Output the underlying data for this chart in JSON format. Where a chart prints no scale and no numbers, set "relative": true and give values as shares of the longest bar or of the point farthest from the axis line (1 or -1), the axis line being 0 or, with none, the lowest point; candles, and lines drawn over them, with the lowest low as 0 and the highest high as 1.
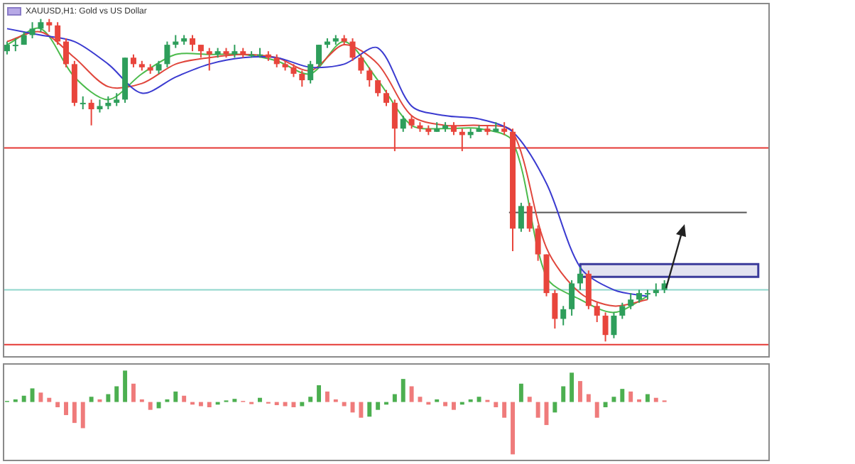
{
  "chart_data": [
    {
      "type": "candlestick",
      "title": "XAUUSD,H1: Gold vs US Dollar",
      "relative": true,
      "tick_labels": false,
      "categories": [
        null,
        null,
        null,
        null,
        null,
        null,
        null,
        null,
        null,
        null,
        null,
        null,
        null,
        null,
        null,
        null,
        null,
        null,
        null,
        null,
        null,
        null,
        null,
        null,
        null,
        null,
        null,
        null,
        null,
        null,
        null,
        null,
        null,
        null,
        null,
        null,
        null,
        null,
        null,
        null,
        null,
        null,
        null,
        null,
        null,
        null,
        null,
        null,
        null,
        null,
        null,
        null,
        null,
        null,
        null,
        null,
        null,
        null,
        null,
        null,
        null,
        null,
        null,
        null,
        null,
        null,
        null,
        null,
        null,
        null,
        null,
        null,
        null,
        null,
        null,
        null,
        null,
        null,
        null,
        null,
        null,
        null,
        null,
        null,
        null,
        null,
        null,
        null,
        null,
        null,
        null
      ],
      "ohlc": [
        [
          0.9,
          0.93,
          0.89,
          0.92
        ],
        [
          0.92,
          0.94,
          0.9,
          0.92
        ],
        [
          0.92,
          0.96,
          0.92,
          0.95
        ],
        [
          0.95,
          0.99,
          0.94,
          0.97
        ],
        [
          0.97,
          1,
          0.96,
          0.99
        ],
        [
          0.99,
          1,
          0.96,
          0.98
        ],
        [
          0.98,
          0.99,
          0.92,
          0.93
        ],
        [
          0.93,
          0.94,
          0.85,
          0.86
        ],
        [
          0.86,
          0.87,
          0.73,
          0.74
        ],
        [
          0.74,
          0.76,
          0.72,
          0.74
        ],
        [
          0.74,
          0.75,
          0.67,
          0.72
        ],
        [
          0.72,
          0.75,
          0.71,
          0.73
        ],
        [
          0.73,
          0.76,
          0.72,
          0.74
        ],
        [
          0.74,
          0.77,
          0.73,
          0.75
        ],
        [
          0.75,
          0.88,
          0.74,
          0.88
        ],
        [
          0.88,
          0.89,
          0.85,
          0.86
        ],
        [
          0.86,
          0.87,
          0.84,
          0.85
        ],
        [
          0.85,
          0.86,
          0.83,
          0.84
        ],
        [
          0.84,
          0.87,
          0.83,
          0.86
        ],
        [
          0.86,
          0.93,
          0.85,
          0.92
        ],
        [
          0.92,
          0.95,
          0.91,
          0.93
        ],
        [
          0.93,
          0.95,
          0.92,
          0.94
        ],
        [
          0.94,
          0.95,
          0.9,
          0.92
        ],
        [
          0.92,
          0.92,
          0.88,
          0.9
        ],
        [
          0.9,
          0.91,
          0.84,
          0.89
        ],
        [
          0.89,
          0.91,
          0.88,
          0.9
        ],
        [
          0.9,
          0.91,
          0.88,
          0.89
        ],
        [
          0.89,
          0.92,
          0.88,
          0.9
        ],
        [
          0.9,
          0.91,
          0.88,
          0.89
        ],
        [
          0.89,
          0.9,
          0.88,
          0.89
        ],
        [
          0.89,
          0.91,
          0.88,
          0.89
        ],
        [
          0.89,
          0.9,
          0.87,
          0.88
        ],
        [
          0.88,
          0.89,
          0.85,
          0.86
        ],
        [
          0.86,
          0.87,
          0.84,
          0.85
        ],
        [
          0.85,
          0.86,
          0.82,
          0.83
        ],
        [
          0.83,
          0.84,
          0.79,
          0.81
        ],
        [
          0.81,
          0.87,
          0.8,
          0.86
        ],
        [
          0.86,
          0.92,
          0.85,
          0.92
        ],
        [
          0.92,
          0.94,
          0.91,
          0.93
        ],
        [
          0.93,
          0.95,
          0.92,
          0.94
        ],
        [
          0.94,
          0.95,
          0.92,
          0.93
        ],
        [
          0.93,
          0.94,
          0.87,
          0.88
        ],
        [
          0.88,
          0.89,
          0.83,
          0.84
        ],
        [
          0.84,
          0.85,
          0.79,
          0.81
        ],
        [
          0.81,
          0.81,
          0.76,
          0.77
        ],
        [
          0.77,
          0.78,
          0.73,
          0.74
        ],
        [
          0.74,
          0.75,
          0.59,
          0.66
        ],
        [
          0.66,
          0.7,
          0.65,
          0.69
        ],
        [
          0.69,
          0.7,
          0.66,
          0.67
        ],
        [
          0.67,
          0.68,
          0.65,
          0.66
        ],
        [
          0.66,
          0.67,
          0.64,
          0.65
        ],
        [
          0.65,
          0.68,
          0.65,
          0.66
        ],
        [
          0.66,
          0.68,
          0.65,
          0.67
        ],
        [
          0.67,
          0.68,
          0.64,
          0.65
        ],
        [
          0.65,
          0.66,
          0.59,
          0.64
        ],
        [
          0.64,
          0.66,
          0.63,
          0.65
        ],
        [
          0.65,
          0.67,
          0.65,
          0.66
        ],
        [
          0.66,
          0.67,
          0.64,
          0.65
        ],
        [
          0.65,
          0.68,
          0.65,
          0.66
        ],
        [
          0.66,
          0.68,
          0.64,
          0.65
        ],
        [
          0.65,
          0.66,
          0.28,
          0.35
        ],
        [
          0.35,
          0.43,
          0.34,
          0.42
        ],
        [
          0.42,
          0.43,
          0.34,
          0.35
        ],
        [
          0.35,
          0.36,
          0.25,
          0.27
        ],
        [
          0.27,
          0.27,
          0.14,
          0.15
        ],
        [
          0.15,
          0.16,
          0.04,
          0.07
        ],
        [
          0.07,
          0.11,
          0.05,
          0.1
        ],
        [
          0.1,
          0.19,
          0.08,
          0.18
        ],
        [
          0.18,
          0.23,
          0.16,
          0.21
        ],
        [
          0.21,
          0.22,
          0.1,
          0.11
        ],
        [
          0.11,
          0.12,
          0.06,
          0.08
        ],
        [
          0.08,
          0.09,
          0,
          0.02
        ],
        [
          0.02,
          0.09,
          0.01,
          0.08
        ],
        [
          0.08,
          0.12,
          0.07,
          0.11
        ],
        [
          0.11,
          0.15,
          0.1,
          0.13
        ],
        [
          0.13,
          0.16,
          0.12,
          0.15
        ],
        [
          0.15,
          0.16,
          0.13,
          0.15
        ],
        [
          0.15,
          0.18,
          0.14,
          0.16
        ],
        [
          0.16,
          0.19,
          0.15,
          0.18
        ],
        null,
        null,
        null,
        null,
        null,
        null,
        null,
        null,
        null,
        null,
        null,
        null
      ],
      "series": [
        {
          "type": "line",
          "color": "#3b3bd0",
          "values": [
            0.97,
            null,
            null,
            null,
            0.95,
            null,
            null,
            null,
            0.93,
            null,
            null,
            null,
            0.86,
            null,
            null,
            null,
            0.77,
            null,
            null,
            null,
            0.82,
            null,
            null,
            null,
            0.86,
            null,
            null,
            null,
            0.88,
            null,
            null,
            null,
            0.88,
            null,
            null,
            null,
            0.85,
            null,
            null,
            null,
            0.86,
            null,
            null,
            null,
            0.91,
            null,
            null,
            null,
            0.73,
            null,
            null,
            null,
            0.7,
            null,
            null,
            null,
            0.69,
            null,
            null,
            null,
            0.65,
            null,
            null,
            null,
            0.49,
            null,
            null,
            null,
            0.23,
            null,
            null,
            null,
            0.16,
            null,
            null,
            null,
            0.14,
            null,
            null,
            null,
            null,
            null,
            null,
            null,
            null,
            null,
            null,
            null,
            null,
            null,
            null
          ]
        },
        {
          "type": "line",
          "color": "#e0463c",
          "values": [
            0.93,
            null,
            null,
            null,
            0.96,
            null,
            null,
            null,
            0.88,
            null,
            null,
            null,
            0.79,
            null,
            null,
            null,
            0.8,
            null,
            null,
            null,
            0.86,
            null,
            null,
            null,
            0.88,
            null,
            null,
            null,
            0.89,
            null,
            null,
            null,
            0.88,
            null,
            null,
            null,
            0.84,
            null,
            null,
            null,
            0.92,
            null,
            null,
            null,
            0.86,
            null,
            null,
            null,
            0.7,
            null,
            null,
            null,
            0.67,
            null,
            null,
            null,
            0.67,
            null,
            null,
            null,
            0.65,
            null,
            null,
            null,
            0.29,
            null,
            null,
            null,
            0.15,
            null,
            null,
            null,
            0.11,
            null,
            null,
            null,
            0.13,
            null,
            null,
            null,
            null,
            null,
            null,
            null,
            null,
            null,
            null,
            null,
            null,
            null,
            null
          ]
        },
        {
          "type": "line",
          "color": "#4cbb4c",
          "values": [
            0.92,
            null,
            null,
            null,
            0.97,
            null,
            null,
            null,
            0.82,
            null,
            null,
            null,
            0.75,
            null,
            null,
            null,
            0.83,
            null,
            null,
            null,
            0.89,
            null,
            null,
            null,
            0.89,
            null,
            null,
            null,
            0.89,
            null,
            null,
            null,
            0.87,
            null,
            null,
            null,
            0.83,
            null,
            null,
            null,
            0.93,
            null,
            null,
            null,
            0.81,
            null,
            null,
            null,
            0.67,
            null,
            null,
            null,
            0.66,
            null,
            null,
            null,
            0.66,
            null,
            null,
            null,
            0.62,
            null,
            null,
            null,
            0.2,
            null,
            null,
            null,
            0.13,
            null,
            null,
            null,
            0.09,
            null,
            null,
            null,
            0.14,
            null,
            null,
            null,
            null,
            null,
            null,
            null,
            null,
            null,
            null,
            null,
            null,
            null,
            null
          ]
        }
      ],
      "ref_lines": [
        {
          "axis": "y",
          "value": 0.6,
          "color": "#e53935"
        },
        {
          "axis": "y",
          "value": -0.01,
          "color": "#e53935"
        },
        {
          "axis": "y",
          "value": 0.16,
          "color": "#8fd6cc"
        },
        {
          "axis": "y",
          "value": 0.4,
          "color": "#555555"
        }
      ],
      "bands": [
        {
          "axis": "y",
          "from": 0.2,
          "to": 0.24,
          "color": "#3a3a9a"
        }
      ]
    },
    {
      "type": "bar",
      "relative": true,
      "tick_labels": false,
      "categories": [
        null,
        null,
        null,
        null,
        null,
        null,
        null,
        null,
        null,
        null,
        null,
        null,
        null,
        null,
        null,
        null,
        null,
        null,
        null,
        null,
        null,
        null,
        null,
        null,
        null,
        null,
        null,
        null,
        null,
        null,
        null,
        null,
        null,
        null,
        null,
        null,
        null,
        null,
        null,
        null,
        null,
        null,
        null,
        null,
        null,
        null,
        null,
        null,
        null,
        null,
        null,
        null,
        null,
        null,
        null,
        null,
        null,
        null,
        null,
        null,
        null,
        null,
        null,
        null,
        null,
        null,
        null,
        null,
        null,
        null,
        null,
        null,
        null,
        null,
        null,
        null,
        null,
        null,
        null,
        null,
        null,
        null,
        null,
        null,
        null,
        null,
        null,
        null,
        null,
        null,
        null
      ],
      "values": [
        0.02,
        0.05,
        0.12,
        0.26,
        0.18,
        0.08,
        -0.1,
        -0.25,
        -0.4,
        -0.5,
        0.1,
        0.05,
        0.15,
        0.3,
        0.6,
        0.35,
        0.05,
        -0.15,
        -0.12,
        0.05,
        0.2,
        0.12,
        -0.05,
        -0.08,
        -0.1,
        -0.05,
        0.03,
        0.06,
        0.02,
        -0.04,
        0.08,
        -0.03,
        -0.06,
        -0.08,
        -0.1,
        -0.08,
        0.1,
        0.32,
        0.2,
        0.05,
        -0.08,
        -0.2,
        -0.3,
        -0.28,
        -0.15,
        -0.05,
        0.15,
        0.44,
        0.3,
        0.1,
        -0.05,
        0.05,
        -0.08,
        -0.15,
        -0.05,
        0.05,
        0.1,
        0.04,
        -0.1,
        -0.3,
        -1,
        0.35,
        0.1,
        -0.3,
        -0.44,
        -0.2,
        0.3,
        0.56,
        0.4,
        0.15,
        -0.3,
        -0.1,
        0.1,
        0.25,
        0.2,
        0.05,
        0.15,
        0.08,
        0.03,
        null,
        null,
        null,
        null,
        null,
        null,
        null,
        null,
        null,
        null,
        null,
        null
      ],
      "colors": [
        "#4caf50",
        "#4caf50",
        "#4caf50",
        "#4caf50",
        "#ef7b7b",
        "#ef7b7b",
        "#ef7b7b",
        "#ef7b7b",
        "#ef7b7b",
        "#ef7b7b",
        "#4caf50",
        "#ef7b7b",
        "#4caf50",
        "#4caf50",
        "#4caf50",
        "#ef7b7b",
        "#ef7b7b",
        "#ef7b7b",
        "#4caf50",
        "#4caf50",
        "#4caf50",
        "#ef7b7b",
        "#ef7b7b",
        "#ef7b7b",
        "#ef7b7b",
        "#4caf50",
        "#4caf50",
        "#4caf50",
        "#ef7b7b",
        "#ef7b7b",
        "#4caf50",
        "#ef7b7b",
        "#ef7b7b",
        "#ef7b7b",
        "#ef7b7b",
        "#4caf50",
        "#4caf50",
        "#4caf50",
        "#ef7b7b",
        "#ef7b7b",
        "#ef7b7b",
        "#ef7b7b",
        "#ef7b7b",
        "#4caf50",
        "#4caf50",
        "#4caf50",
        "#4caf50",
        "#4caf50",
        "#ef7b7b",
        "#ef7b7b",
        "#ef7b7b",
        "#4caf50",
        "#ef7b7b",
        "#ef7b7b",
        "#4caf50",
        "#4caf50",
        "#4caf50",
        "#ef7b7b",
        "#ef7b7b",
        "#ef7b7b",
        "#ef7b7b",
        "#4caf50",
        "#ef7b7b",
        "#ef7b7b",
        "#ef7b7b",
        "#4caf50",
        "#4caf50",
        "#4caf50",
        "#ef7b7b",
        "#ef7b7b",
        "#ef7b7b",
        "#4caf50",
        "#4caf50",
        "#4caf50",
        "#ef7b7b",
        "#ef7b7b",
        "#4caf50",
        "#ef7b7b",
        "#ef7b7b",
        null,
        null,
        null,
        null,
        null,
        null,
        null,
        null,
        null,
        null,
        null,
        null
      ]
    }
  ]
}
